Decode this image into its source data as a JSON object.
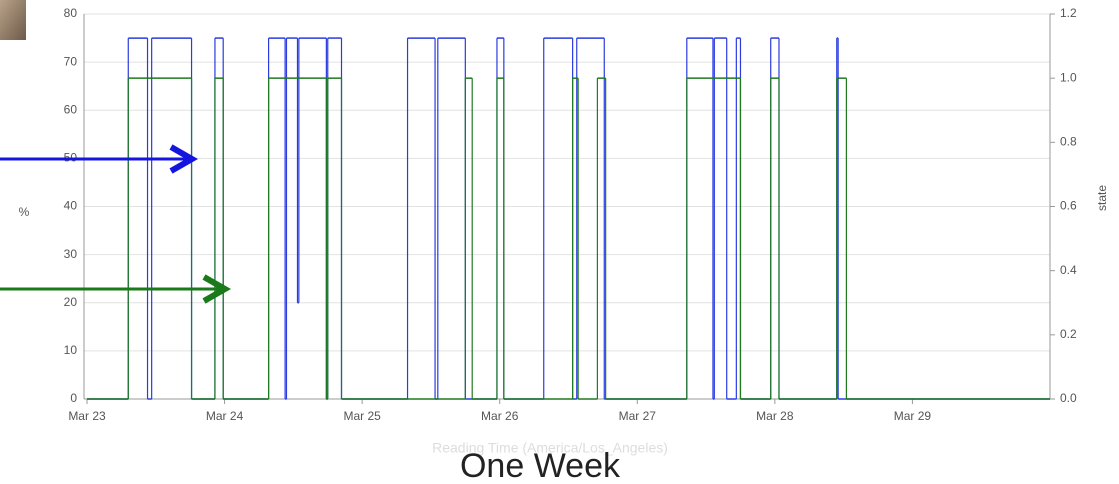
{
  "chart_data": {
    "type": "step-line",
    "x_label": "Reading Time (America/Los_Angeles)",
    "y_label": "%",
    "y2_label": "state",
    "caption": "One Week",
    "xlim": [
      0,
      7
    ],
    "xticks": [
      {
        "value": 0,
        "label": "Mar 23"
      },
      {
        "value": 1,
        "label": "Mar 24"
      },
      {
        "value": 2,
        "label": "Mar 25"
      },
      {
        "value": 3,
        "label": "Mar 26"
      },
      {
        "value": 4,
        "label": "Mar 27"
      },
      {
        "value": 5,
        "label": "Mar 28"
      },
      {
        "value": 6,
        "label": "Mar 29"
      }
    ],
    "ylim": [
      0,
      80
    ],
    "yticks": [
      0,
      10,
      20,
      30,
      40,
      50,
      60,
      70,
      80
    ],
    "y2lim": [
      0,
      1.2
    ],
    "y2ticks": [
      {
        "value": 0,
        "label": "0.0"
      },
      0.2,
      0.4,
      0.6,
      0.8,
      {
        "value": 1,
        "label": "1.0"
      },
      1.2
    ],
    "grid": true,
    "series": [
      {
        "color": "#2b3be0",
        "x": [
          0,
          0.3,
          0.44,
          0.47,
          0.76,
          0.93,
          0.99,
          1.32,
          1.44,
          1.45,
          1.53,
          1.54,
          1.74,
          1.75,
          1.85,
          2.33,
          2.53,
          2.55,
          2.75,
          2.98,
          3.03,
          3.32,
          3.53,
          3.56,
          3.76,
          4.36,
          4.55,
          4.56,
          4.65,
          4.72,
          4.75,
          4.97,
          5.03,
          5.45,
          5.46
        ],
        "values": [
          0,
          75,
          0,
          75,
          0,
          75,
          0,
          75,
          0,
          75,
          20,
          75,
          0,
          75,
          0,
          75,
          0,
          75,
          0,
          75,
          0,
          75,
          0,
          75,
          0,
          75,
          0,
          75,
          0,
          75,
          0,
          75,
          0,
          75,
          0
        ]
      },
      {
        "color": "#1f7a1f",
        "axis": "y2",
        "x": [
          0,
          0.3,
          0.76,
          0.93,
          0.99,
          1.32,
          1.74,
          1.75,
          1.85,
          2.75,
          2.8,
          2.98,
          3.03,
          3.53,
          3.57,
          3.71,
          3.77,
          4.36,
          4.75,
          4.97,
          5.03,
          5.45,
          5.52
        ],
        "values": [
          0,
          1,
          0,
          1,
          0,
          1,
          0,
          1,
          0,
          1,
          0,
          1,
          0,
          1,
          0,
          1,
          0,
          1,
          0,
          1,
          0,
          1,
          0
        ]
      }
    ]
  }
}
